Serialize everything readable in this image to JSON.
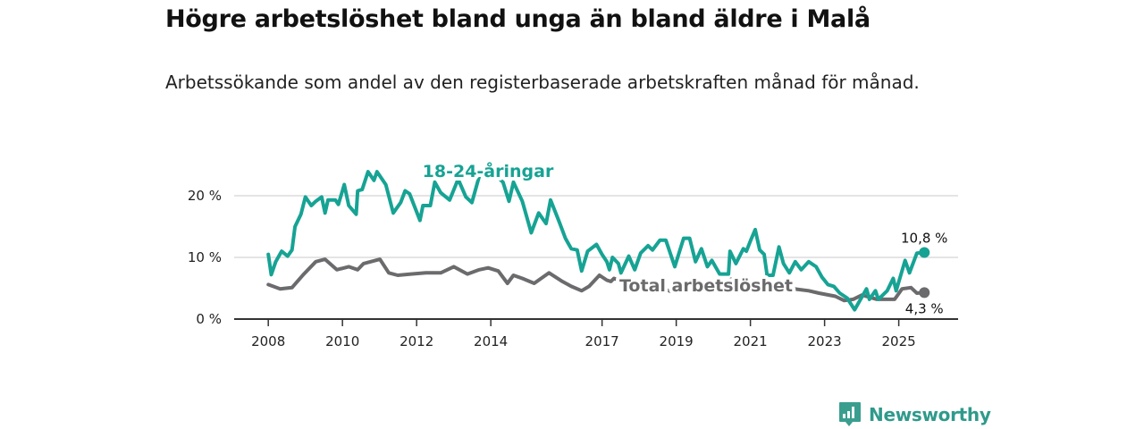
{
  "chart_data": {
    "type": "line",
    "title": "Högre arbetslöshet bland unga än bland äldre i Malå",
    "subtitle": "Arbetssökande som andel av den registerbaserade arbetskraften månad för månad.",
    "xlabel": "",
    "ylabel": "",
    "xlim": [
      2007.08,
      2026.6
    ],
    "ylim": [
      0,
      25
    ],
    "x_ticks": [
      2008,
      2010,
      2012,
      2014,
      2017,
      2019,
      2021,
      2023,
      2025
    ],
    "x_tick_labels": [
      "2008",
      "2010",
      "2012",
      "2014",
      "2017",
      "2019",
      "2021",
      "2023",
      "2025"
    ],
    "y_ticks": [
      0,
      10,
      20
    ],
    "y_tick_labels": [
      "0 %",
      "10 %",
      "20 %"
    ],
    "grid": true,
    "series": [
      {
        "name": "18-24-åringar",
        "color": "#16a394",
        "end_label": "10,8 %",
        "points": [
          [
            2008.0,
            10.5
          ],
          [
            2008.08,
            7.2
          ],
          [
            2008.2,
            9.3
          ],
          [
            2008.36,
            11
          ],
          [
            2008.52,
            10.2
          ],
          [
            2008.64,
            11.2
          ],
          [
            2008.72,
            15
          ],
          [
            2008.88,
            17
          ],
          [
            2009.0,
            19.8
          ],
          [
            2009.16,
            18.4
          ],
          [
            2009.28,
            19.1
          ],
          [
            2009.44,
            19.8
          ],
          [
            2009.53,
            17.2
          ],
          [
            2009.61,
            19.3
          ],
          [
            2009.81,
            19.3
          ],
          [
            2009.89,
            18.6
          ],
          [
            2010.05,
            21.8
          ],
          [
            2010.17,
            18.4
          ],
          [
            2010.37,
            17
          ],
          [
            2010.41,
            20.8
          ],
          [
            2010.53,
            21
          ],
          [
            2010.69,
            23.9
          ],
          [
            2010.85,
            22.5
          ],
          [
            2010.93,
            23.9
          ],
          [
            2011.17,
            21.8
          ],
          [
            2011.37,
            17.2
          ],
          [
            2011.57,
            18.9
          ],
          [
            2011.69,
            20.8
          ],
          [
            2011.81,
            20.3
          ],
          [
            2012.09,
            16
          ],
          [
            2012.17,
            18.4
          ],
          [
            2012.37,
            18.4
          ],
          [
            2012.49,
            22.2
          ],
          [
            2012.65,
            20.5
          ],
          [
            2012.89,
            19.3
          ],
          [
            2013.12,
            22.7
          ],
          [
            2013.33,
            19.8
          ],
          [
            2013.49,
            18.9
          ],
          [
            2013.69,
            23.2
          ],
          [
            2013.85,
            24.5
          ],
          [
            2014.1,
            23.5
          ],
          [
            2014.33,
            22.2
          ],
          [
            2014.49,
            19.1
          ],
          [
            2014.61,
            22.2
          ],
          [
            2014.85,
            19.1
          ],
          [
            2015.09,
            14
          ],
          [
            2015.29,
            17.2
          ],
          [
            2015.49,
            15.5
          ],
          [
            2015.61,
            19.3
          ],
          [
            2015.85,
            15.7
          ],
          [
            2016.01,
            13.1
          ],
          [
            2016.17,
            11.4
          ],
          [
            2016.33,
            11.2
          ],
          [
            2016.45,
            7.8
          ],
          [
            2016.61,
            11
          ],
          [
            2016.85,
            12.1
          ],
          [
            2017.0,
            10.5
          ],
          [
            2017.13,
            9.3
          ],
          [
            2017.2,
            8.0
          ],
          [
            2017.28,
            10
          ],
          [
            2017.44,
            9
          ],
          [
            2017.51,
            7.5
          ],
          [
            2017.72,
            10.2
          ],
          [
            2017.88,
            8
          ],
          [
            2018.04,
            10.7
          ],
          [
            2018.24,
            11.9
          ],
          [
            2018.36,
            11.2
          ],
          [
            2018.56,
            12.8
          ],
          [
            2018.72,
            12.8
          ],
          [
            2018.96,
            8.5
          ],
          [
            2019.2,
            13.1
          ],
          [
            2019.36,
            13.1
          ],
          [
            2019.52,
            9.3
          ],
          [
            2019.68,
            11.4
          ],
          [
            2019.84,
            8.5
          ],
          [
            2019.96,
            9.5
          ],
          [
            2020.17,
            7.3
          ],
          [
            2020.41,
            7.3
          ],
          [
            2020.45,
            11
          ],
          [
            2020.61,
            9
          ],
          [
            2020.81,
            11.4
          ],
          [
            2020.89,
            11
          ],
          [
            2021.01,
            12.8
          ],
          [
            2021.13,
            14.5
          ],
          [
            2021.25,
            11.2
          ],
          [
            2021.37,
            10.5
          ],
          [
            2021.45,
            7.1
          ],
          [
            2021.61,
            7.1
          ],
          [
            2021.77,
            11.7
          ],
          [
            2021.89,
            9
          ],
          [
            2022.05,
            7.5
          ],
          [
            2022.21,
            9.3
          ],
          [
            2022.37,
            8
          ],
          [
            2022.57,
            9.3
          ],
          [
            2022.77,
            8.5
          ],
          [
            2022.93,
            6.8
          ],
          [
            2023.09,
            5.6
          ],
          [
            2023.25,
            5.3
          ],
          [
            2023.41,
            4.2
          ],
          [
            2023.61,
            3.4
          ],
          [
            2023.81,
            1.5
          ],
          [
            2024.13,
            4.9
          ],
          [
            2024.21,
            3.2
          ],
          [
            2024.37,
            4.6
          ],
          [
            2024.45,
            3.2
          ],
          [
            2024.69,
            4.6
          ],
          [
            2024.85,
            6.6
          ],
          [
            2024.93,
            4.6
          ],
          [
            2025.17,
            9.5
          ],
          [
            2025.29,
            7.5
          ],
          [
            2025.49,
            10.7
          ],
          [
            2025.69,
            10.8
          ]
        ]
      },
      {
        "name": "Total arbetslöshet",
        "color": "#6b6b6d",
        "end_label": "4,3 %",
        "points": [
          [
            2008.0,
            5.6
          ],
          [
            2008.32,
            4.9
          ],
          [
            2008.64,
            5.1
          ],
          [
            2008.96,
            7.3
          ],
          [
            2009.28,
            9.3
          ],
          [
            2009.53,
            9.7
          ],
          [
            2009.85,
            8
          ],
          [
            2010.17,
            8.5
          ],
          [
            2010.41,
            8
          ],
          [
            2010.57,
            9
          ],
          [
            2011.01,
            9.7
          ],
          [
            2011.25,
            7.5
          ],
          [
            2011.49,
            7.1
          ],
          [
            2011.85,
            7.3
          ],
          [
            2012.25,
            7.5
          ],
          [
            2012.65,
            7.5
          ],
          [
            2013.0,
            8.5
          ],
          [
            2013.37,
            7.3
          ],
          [
            2013.69,
            8
          ],
          [
            2013.93,
            8.3
          ],
          [
            2014.2,
            7.8
          ],
          [
            2014.45,
            5.8
          ],
          [
            2014.61,
            7.1
          ],
          [
            2014.85,
            6.6
          ],
          [
            2015.17,
            5.8
          ],
          [
            2015.57,
            7.5
          ],
          [
            2015.93,
            6.1
          ],
          [
            2016.17,
            5.3
          ],
          [
            2016.45,
            4.6
          ],
          [
            2016.65,
            5.3
          ],
          [
            2016.93,
            7.1
          ],
          [
            2017.13,
            6.3
          ],
          [
            2017.24,
            6.1
          ],
          [
            2017.32,
            6.6
          ],
          [
            2017.6,
            6.0
          ],
          [
            2018.0,
            5.5
          ],
          [
            2018.5,
            5.2
          ],
          [
            2019.0,
            4.2
          ],
          [
            2019.5,
            4.8
          ],
          [
            2020.0,
            5.0
          ],
          [
            2020.5,
            6.5
          ],
          [
            2021.0,
            6.0
          ],
          [
            2021.5,
            5.2
          ],
          [
            2022.0,
            5.0
          ],
          [
            2022.17,
            4.9
          ],
          [
            2022.57,
            4.6
          ],
          [
            2022.85,
            4.2
          ],
          [
            2023.29,
            3.7
          ],
          [
            2023.53,
            3.0
          ],
          [
            2023.77,
            3.2
          ],
          [
            2024.01,
            3.9
          ],
          [
            2024.41,
            3.2
          ],
          [
            2024.89,
            3.2
          ],
          [
            2025.09,
            4.9
          ],
          [
            2025.33,
            5.1
          ],
          [
            2025.49,
            4.2
          ],
          [
            2025.69,
            4.3
          ]
        ]
      }
    ]
  },
  "branding": {
    "logo_text": "Newsworthy",
    "color": "#3a9e8f"
  }
}
